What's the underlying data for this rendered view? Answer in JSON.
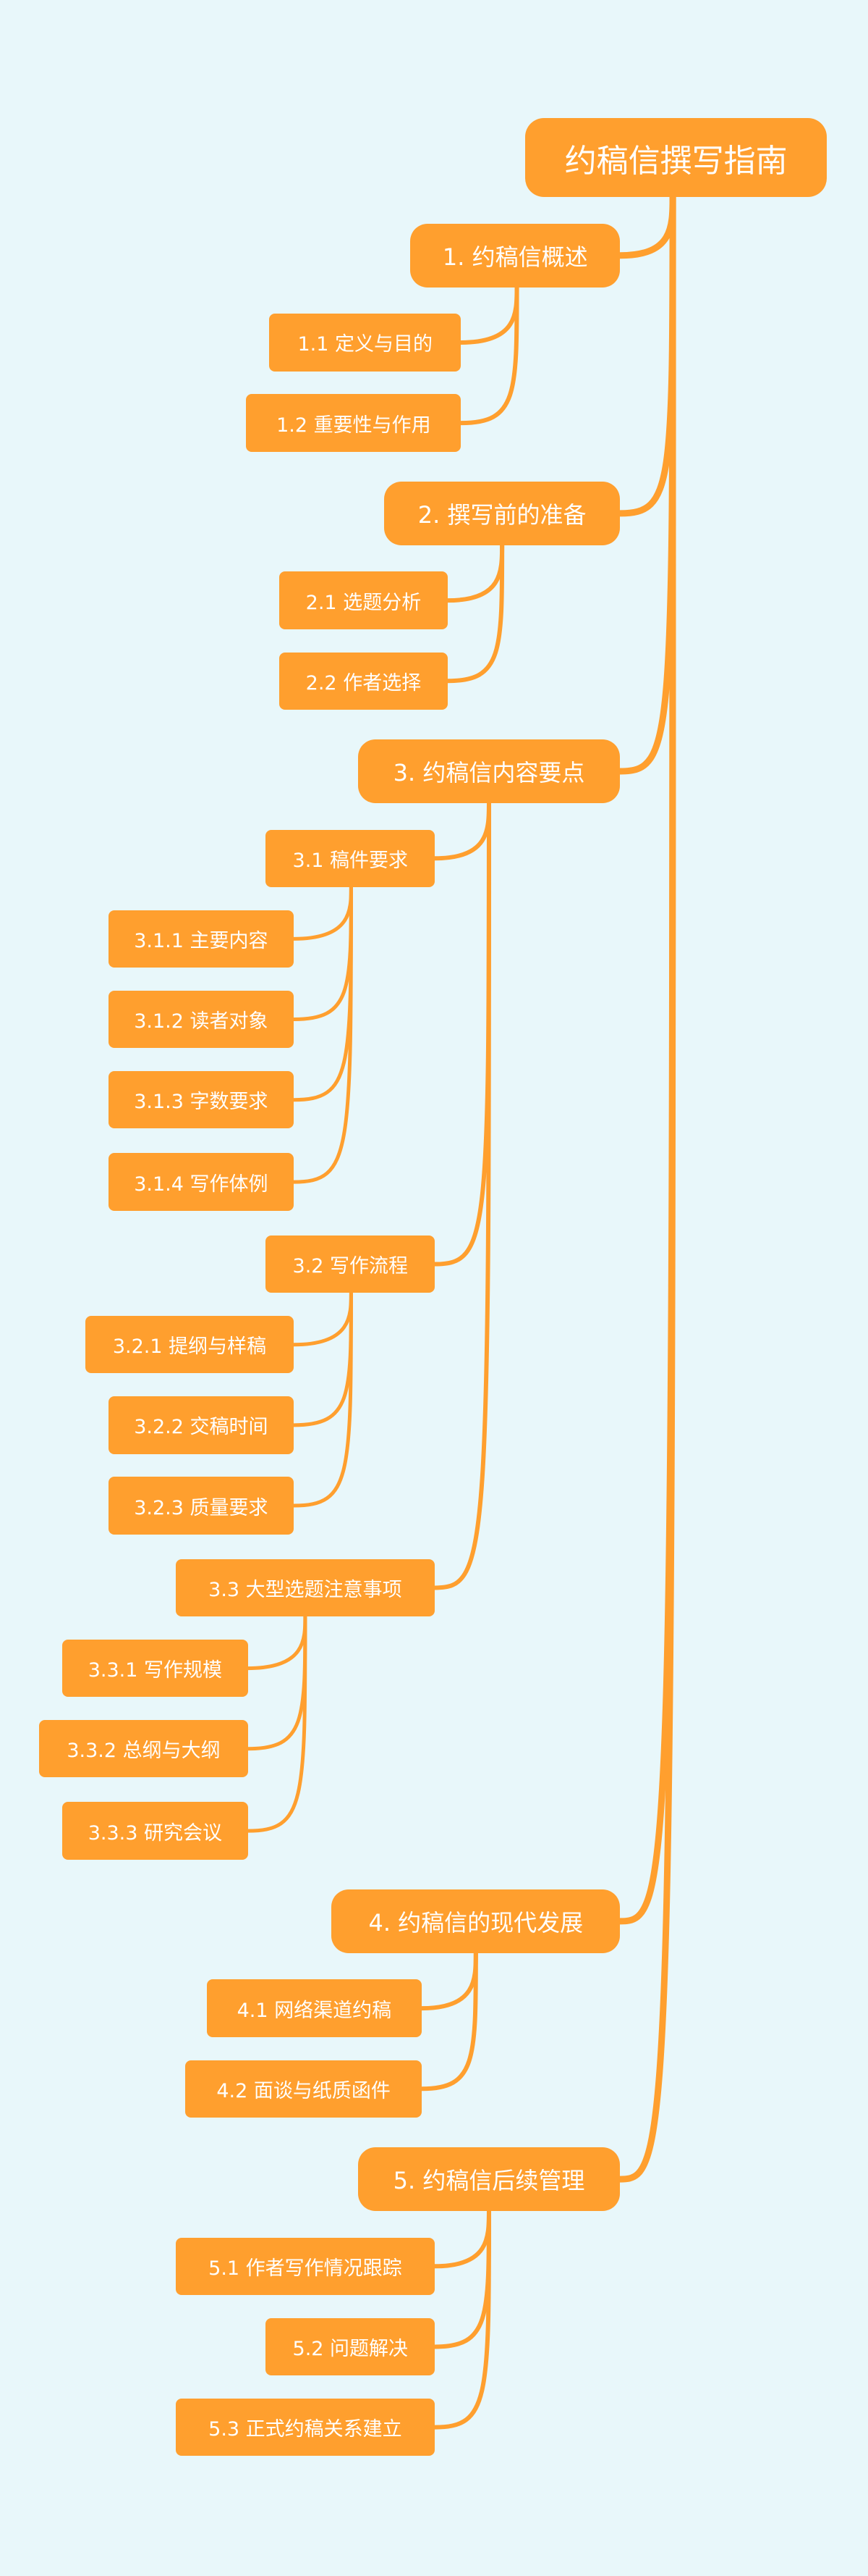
{
  "colors": {
    "background": "#e8f7fa",
    "node": "#ff9f2e",
    "text": "#ffffff",
    "link": "#ff9f2e"
  },
  "mindmap": {
    "root": {
      "label": "约稿信撰写指南"
    },
    "sections": [
      {
        "label": "1. 约稿信概述",
        "children": [
          {
            "label": "1.1 定义与目的"
          },
          {
            "label": "1.2 重要性与作用"
          }
        ]
      },
      {
        "label": "2. 撰写前的准备",
        "children": [
          {
            "label": "2.1 选题分析"
          },
          {
            "label": "2.2 作者选择"
          }
        ]
      },
      {
        "label": "3. 约稿信内容要点",
        "children": [
          {
            "label": "3.1 稿件要求",
            "children": [
              {
                "label": "3.1.1 主要内容"
              },
              {
                "label": "3.1.2 读者对象"
              },
              {
                "label": "3.1.3 字数要求"
              },
              {
                "label": "3.1.4 写作体例"
              }
            ]
          },
          {
            "label": "3.2 写作流程",
            "children": [
              {
                "label": "3.2.1 提纲与样稿"
              },
              {
                "label": "3.2.2 交稿时间"
              },
              {
                "label": "3.2.3 质量要求"
              }
            ]
          },
          {
            "label": "3.3 大型选题注意事项",
            "children": [
              {
                "label": "3.3.1 写作规模"
              },
              {
                "label": "3.3.2 总纲与大纲"
              },
              {
                "label": "3.3.3 研究会议"
              }
            ]
          }
        ]
      },
      {
        "label": "4. 约稿信的现代发展",
        "children": [
          {
            "label": "4.1 网络渠道约稿"
          },
          {
            "label": "4.2 面谈与纸质函件"
          }
        ]
      },
      {
        "label": "5. 约稿信后续管理",
        "children": [
          {
            "label": "5.1 作者写作情况跟踪"
          },
          {
            "label": "5.2 问题解决"
          },
          {
            "label": "5.3 正式约稿关系建立"
          }
        ]
      }
    ]
  }
}
